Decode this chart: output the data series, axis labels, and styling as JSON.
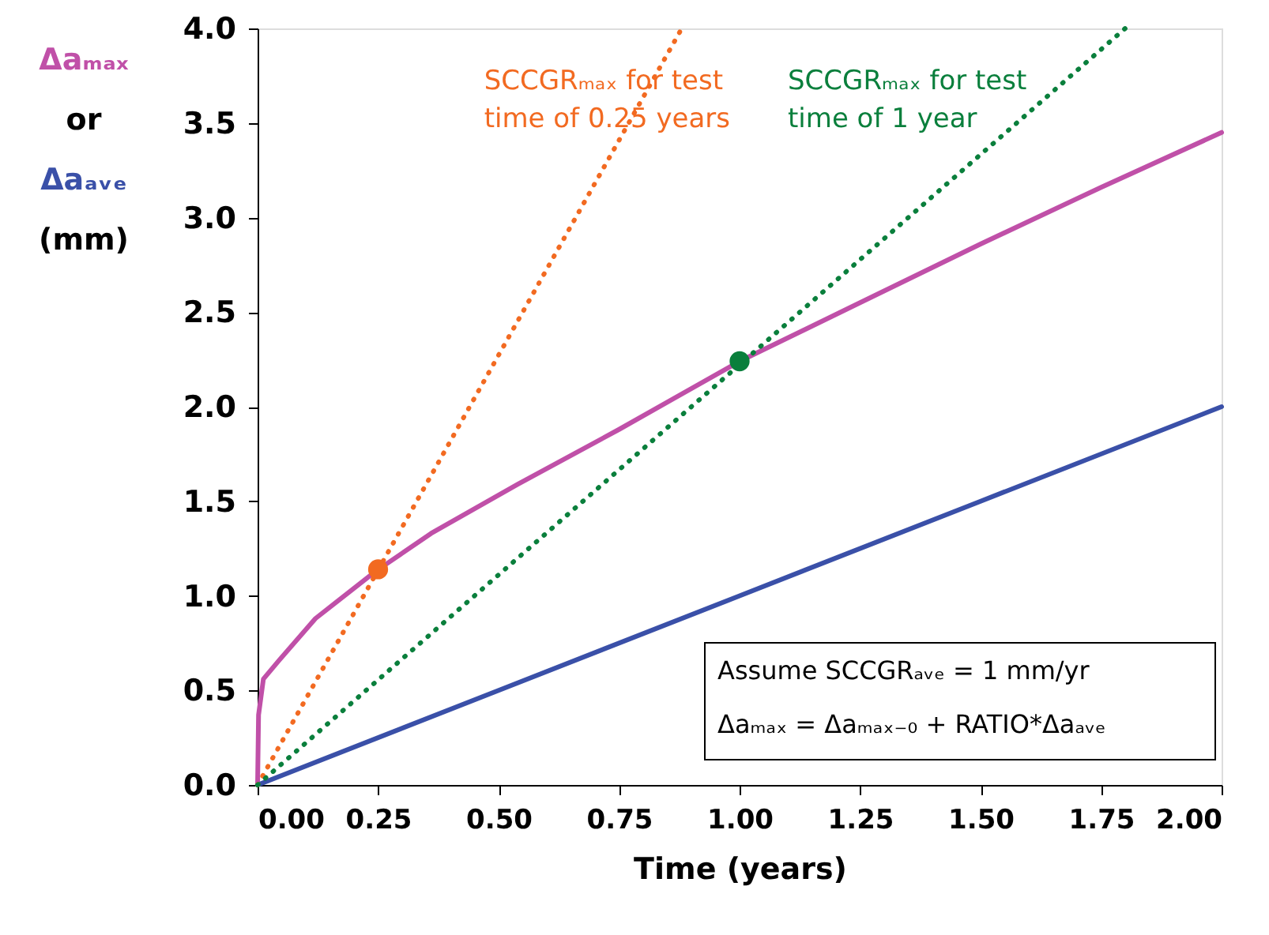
{
  "chart_data": {
    "type": "line",
    "xlabel": "Time (years)",
    "ylabel": "Δaₘₐₓ or Δaₐᵥₑ (mm)",
    "xlim": [
      0,
      2
    ],
    "xticks": [
      {
        "value": 0,
        "label": "0.00"
      },
      0.25,
      {
        "value": 0.5,
        "label": "0.50"
      },
      0.75,
      {
        "value": 1,
        "label": "1.00"
      },
      1.25,
      {
        "value": 1.5,
        "label": "1.50"
      },
      1.75,
      {
        "value": 2,
        "label": "2.00"
      }
    ],
    "ylim": [
      0,
      4
    ],
    "yticks": [
      {
        "value": 0,
        "label": "0.0"
      },
      0.5,
      {
        "value": 1,
        "label": "1.0"
      },
      1.5,
      {
        "value": 2,
        "label": "2.0"
      },
      2.5,
      {
        "value": 3,
        "label": "3.0"
      },
      3.5,
      {
        "value": 4,
        "label": "4.0"
      }
    ],
    "grid": false,
    "marker": "none",
    "series": [
      {
        "color": "#c050a8",
        "line_style": "solid",
        "x": [
          0,
          0.002,
          0.012,
          0.045,
          0.12,
          0.245,
          0.36,
          0.54,
          0.75,
          1.0,
          1.25,
          1.5,
          1.75,
          2.0
        ],
        "values": [
          0,
          0.37,
          0.56,
          0.66,
          0.88,
          1.13,
          1.33,
          1.59,
          1.88,
          2.24,
          2.55,
          2.86,
          3.16,
          3.45
        ]
      },
      {
        "color": "#3a50a8",
        "line_style": "solid",
        "x": [
          0,
          0.5,
          1.0,
          1.5,
          2.0
        ],
        "values": [
          0,
          0.5,
          1.0,
          1.5,
          2.0
        ]
      },
      {
        "color": "#f26a21",
        "line_style": "dotted",
        "x": [
          0,
          0.88
        ],
        "values": [
          0,
          4.0
        ]
      },
      {
        "color": "#0a7f3c",
        "line_style": "dotted",
        "x": [
          0,
          1.8
        ],
        "values": [
          0,
          4.0
        ]
      },
      {
        "type": "scatter",
        "color": "#f26a21",
        "marker": "circle",
        "x": [
          0.25
        ],
        "values": [
          1.14
        ]
      },
      {
        "type": "scatter",
        "color": "#0a7f3c",
        "marker": "circle",
        "x": [
          1.0
        ],
        "values": [
          2.24
        ]
      }
    ],
    "annotations": [
      "SCCGRₘₐₓ for test time of 0.25 years",
      "SCCGRₘₐₓ for test time of 1 year",
      "Assume SCCGRₐᵥₑ = 1 mm/yr",
      "Δaₘₐₓ = Δaₘₐₓ₋₀ + RATIO*Δaₐᵥₑ"
    ]
  }
}
